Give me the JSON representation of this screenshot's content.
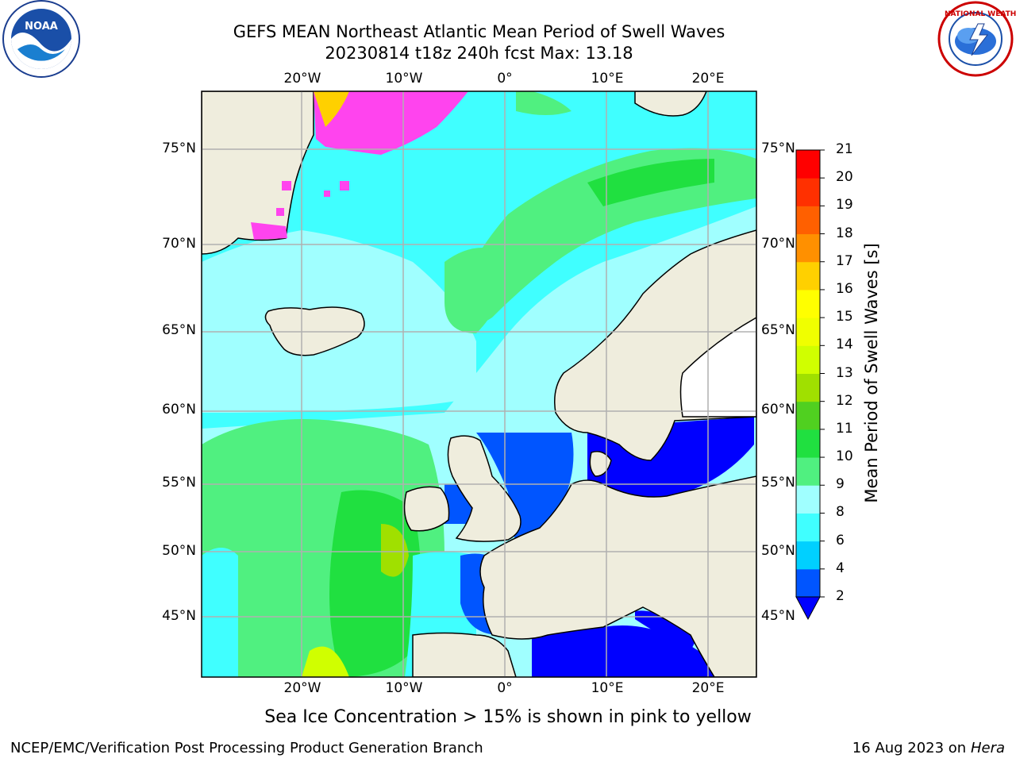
{
  "title_line1": "GEFS MEAN Northeast Atlantic Mean Period of Swell Waves",
  "title_line2": "20230814 t18z 240h fcst   Max: 13.18",
  "lon_labels": [
    "20°W",
    "10°W",
    "0°",
    "10°E",
    "20°E"
  ],
  "lat_labels": [
    "75°N",
    "70°N",
    "65°N",
    "60°N",
    "55°N",
    "50°N",
    "45°N"
  ],
  "colorbar": {
    "label": "Mean Period of Swell Waves [s]",
    "ticks": [
      "2",
      "4",
      "6",
      "8",
      "9",
      "10",
      "11",
      "12",
      "13",
      "14",
      "15",
      "16",
      "17",
      "18",
      "19",
      "20",
      "21"
    ],
    "colors": [
      "#0055ff",
      "#00d0ff",
      "#40ffff",
      "#a0ffff",
      "#50f080",
      "#20e040",
      "#50d020",
      "#a0e000",
      "#d0ff00",
      "#f0ff00",
      "#ffff00",
      "#ffd000",
      "#ff9000",
      "#ff6000",
      "#ff3000",
      "#ff0000"
    ],
    "extend_color": "#0000ff"
  },
  "land_color": "#efeddd",
  "ice_color": "#ff44ee",
  "note": "Sea Ice Concentration > 15% is shown in pink to yellow",
  "footer_left": "NCEP/EMC/Verification Post Processing Product Generation Branch",
  "footer_date": "16 Aug 2023 on",
  "footer_host": "Hera",
  "logo_left": "NOAA",
  "logo_right": "NATIONAL WEATHER SERVICE"
}
